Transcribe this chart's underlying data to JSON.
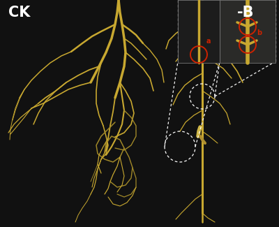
{
  "label_CK": "CK",
  "label_B": "-B",
  "label_a": "a",
  "label_b": "b",
  "background_color": "#111111",
  "text_color_white": "#ffffff",
  "text_color_red": "#cc2200",
  "figsize": [
    4.0,
    3.25
  ],
  "dpi": 100,
  "border_color": "#888888",
  "root_color": "#c8a830",
  "root_color2": "#a08828",
  "inset_bg": "#1e1e1e",
  "circle_color_white": "#ffffff",
  "circle_color_red": "#cc2200"
}
